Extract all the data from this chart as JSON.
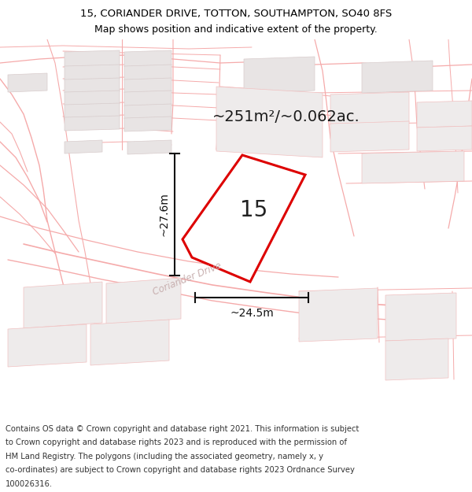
{
  "title_line1": "15, CORIANDER DRIVE, TOTTON, SOUTHAMPTON, SO40 8FS",
  "title_line2": "Map shows position and indicative extent of the property.",
  "footer_lines": [
    "Contains OS data © Crown copyright and database right 2021. This information is subject",
    "to Crown copyright and database rights 2023 and is reproduced with the permission of",
    "HM Land Registry. The polygons (including the associated geometry, namely x, y",
    "co-ordinates) are subject to Crown copyright and database rights 2023 Ordnance Survey",
    "100026316."
  ],
  "area_label": "~251m²/~0.062ac.",
  "number_label": "15",
  "dim_h": "~27.6m",
  "dim_w": "~24.5m",
  "road_label": "Coriander Drive",
  "map_bg": "#faf7f7",
  "plot_fill": "#ffffff",
  "plot_stroke": "#dd0000",
  "line_color": "#f5aaaa",
  "line_color2": "#f0c0c0",
  "building_fill": "#e8e4e4",
  "building_edge": "#d8cccc",
  "parcel_fill": "#eeebeb",
  "parcel_edge": "#e0d4d4",
  "dim_line_color": "#111111",
  "road_label_color": "#c8b0b0",
  "title_fontsize": 9.5,
  "footer_fontsize": 7.2,
  "area_fontsize": 14,
  "number_fontsize": 20,
  "dim_fontsize": 10,
  "road_fontsize": 8.5
}
